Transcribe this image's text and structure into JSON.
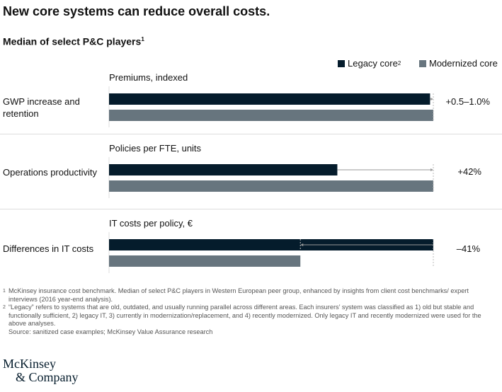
{
  "chart_data": {
    "type": "bar",
    "orientation": "horizontal",
    "title": "New core systems can reduce overall costs.",
    "subtitle": "Median of select P&C players",
    "subtitle_footnote": "1",
    "legend": [
      {
        "name": "Legacy core",
        "footnote": "2",
        "color": "#051c2c"
      },
      {
        "name": "Modernized core",
        "footnote": "",
        "color": "#67757e"
      }
    ],
    "legend_position": "top-right",
    "groups": [
      {
        "label": "GWP increase and retention",
        "metric": "Premiums, indexed",
        "legacy": 99,
        "modernized": 100,
        "change": "+0.5–1.0%"
      },
      {
        "label": "Operations productivity",
        "metric": "Policies per FTE, units",
        "legacy": 70.4,
        "modernized": 100,
        "change": "+42%"
      },
      {
        "label": "Differences in IT costs",
        "metric": "IT costs per policy, €",
        "legacy": 100,
        "modernized": 59,
        "change": "–41%"
      }
    ],
    "xlim": [
      0,
      100
    ]
  },
  "footnotes": [
    {
      "n": "1",
      "text": "McKinsey insurance cost benchmark. Median of select P&C players in Western European peer group, enhanced by insights from client cost benchmarks/ expert interviews (2016 year-end analysis)."
    },
    {
      "n": "2",
      "text": "“Legacy” refers to systems that are old, outdated, and usually running parallel across different areas. Each insurers’ system was classified as 1) old but stable and functionally sufficient, 2) legacy IT, 3) currently in modernization/replacement, and 4) recently modernized. Only legacy IT and recently modernized were used for the above analyses."
    }
  ],
  "source": "Source: sanitized case examples; McKinsey Value Assurance research",
  "logo": {
    "line1": "McKinsey",
    "line2": "& Company"
  }
}
